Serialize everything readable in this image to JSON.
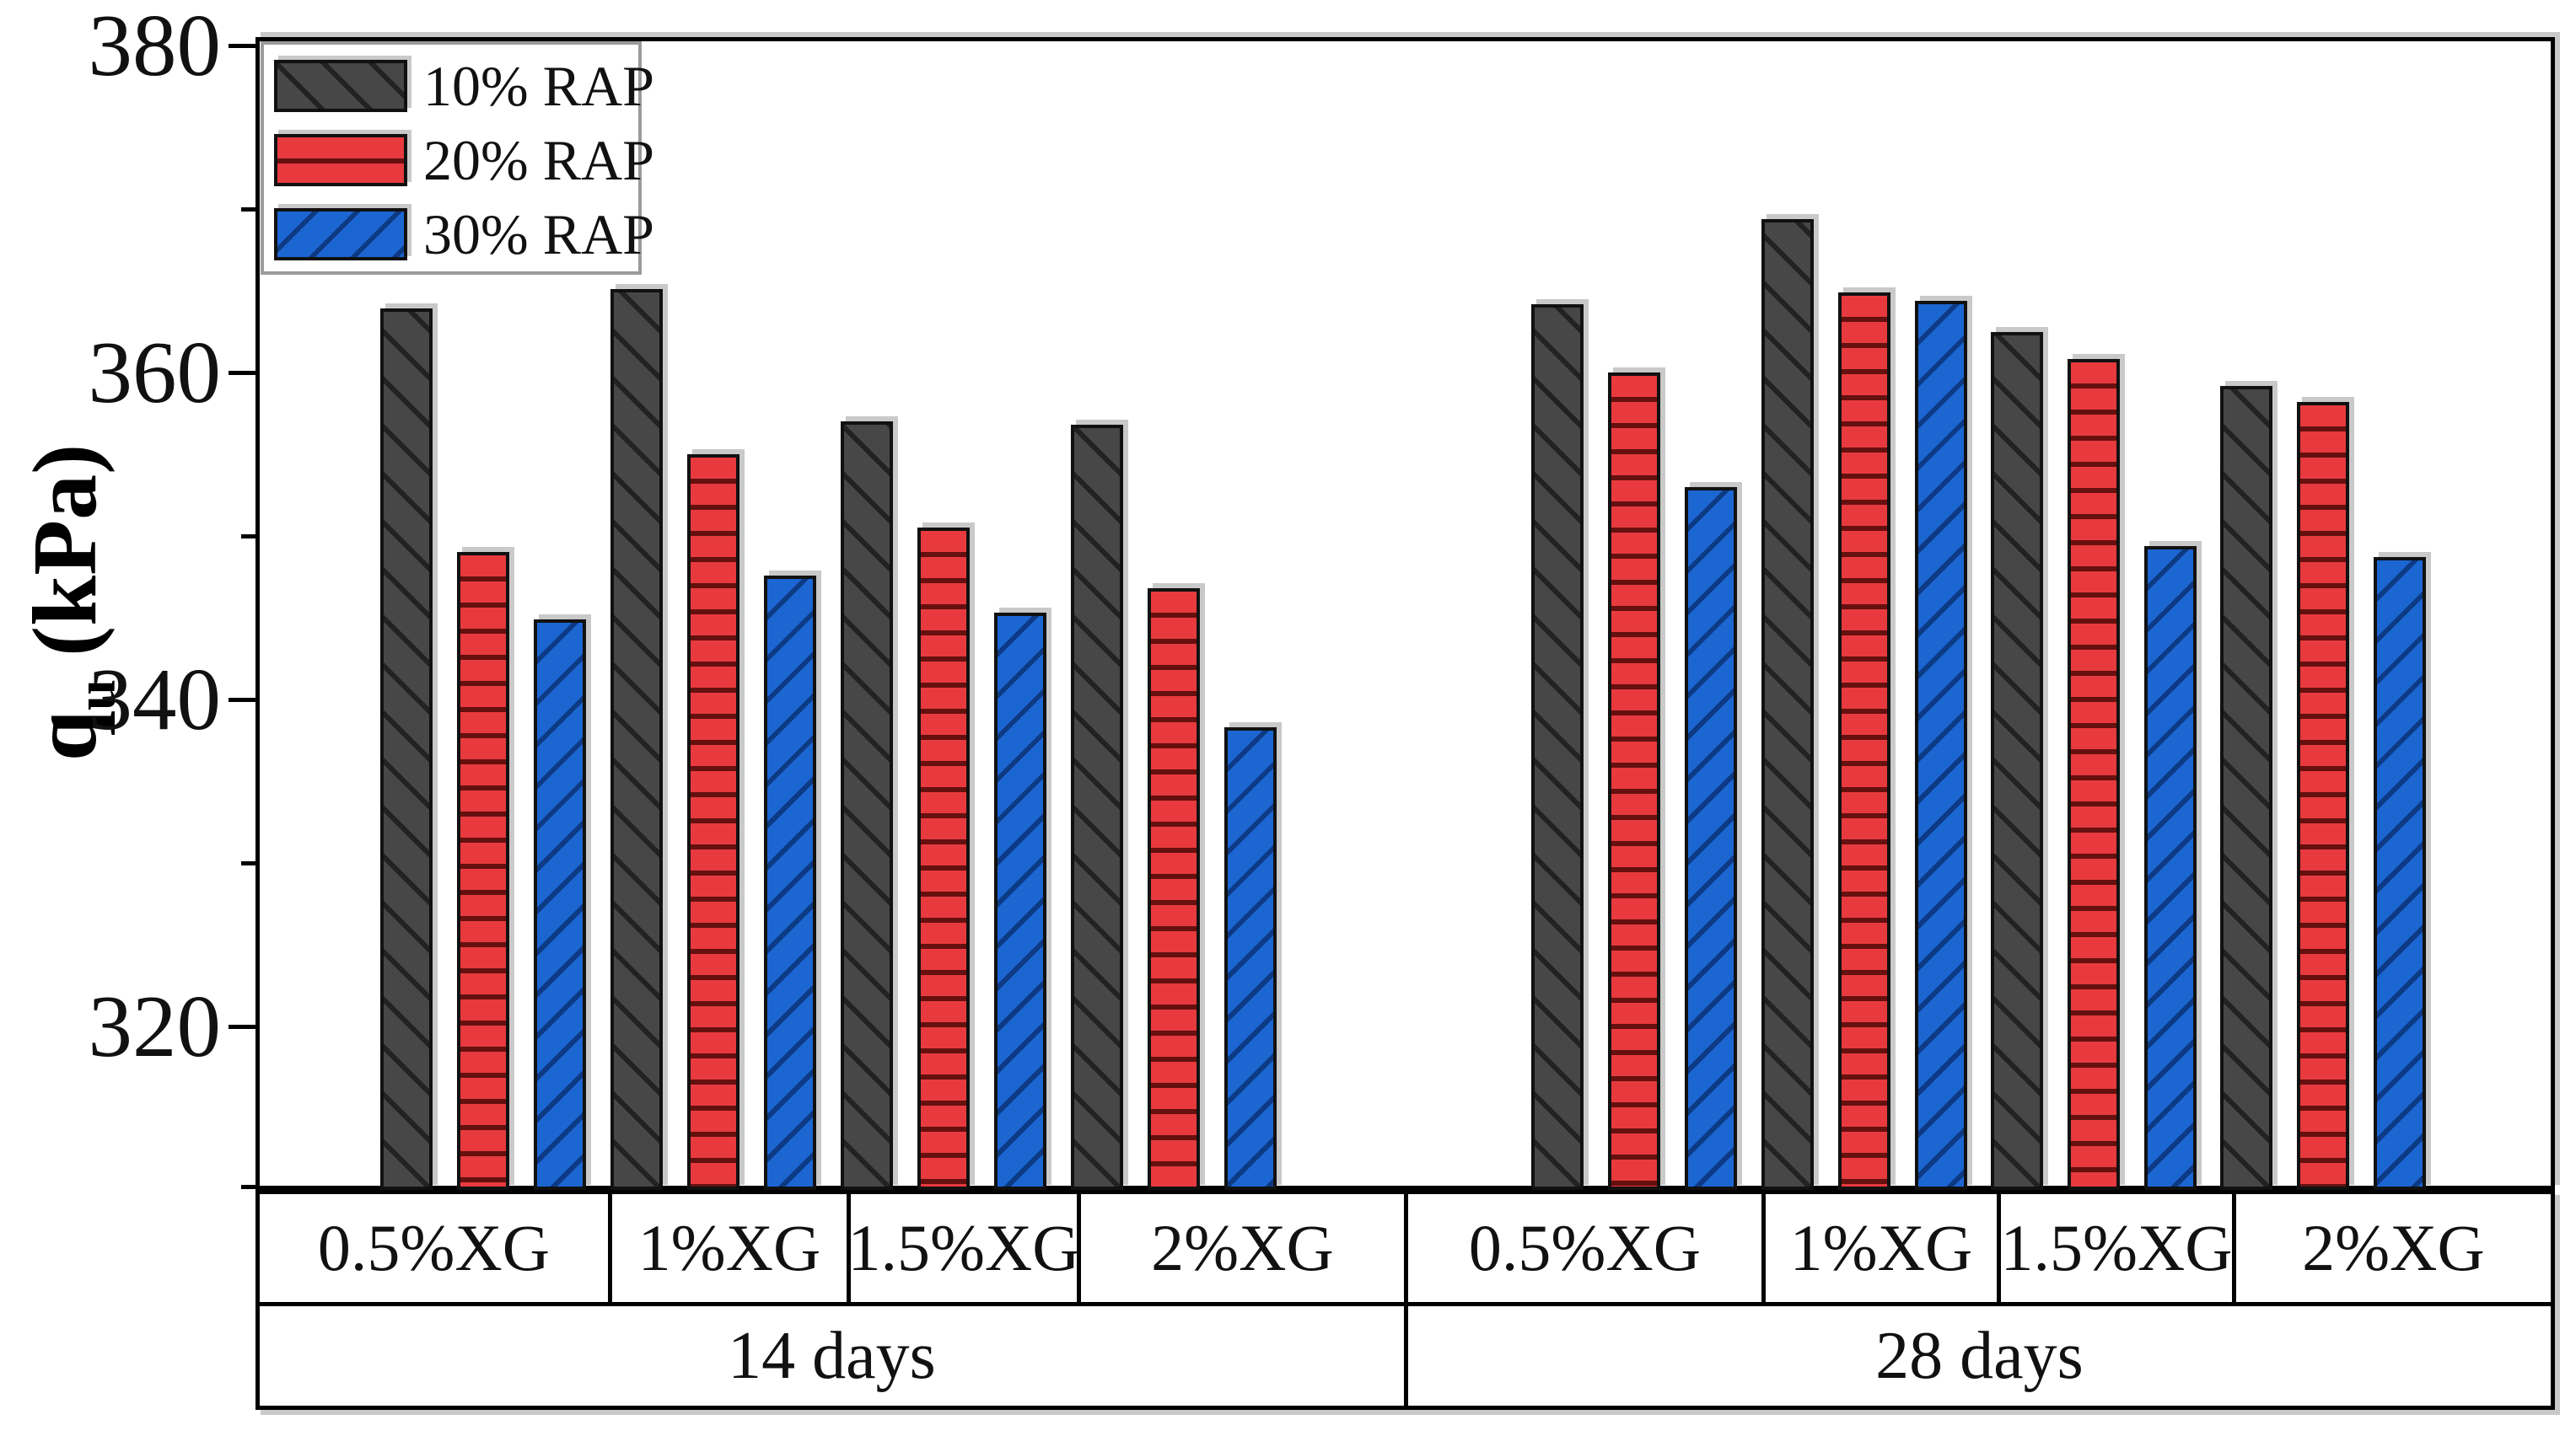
{
  "chart_data": {
    "type": "bar",
    "title": "",
    "ylabel": "q_u (kPa)",
    "ylabel_parts": {
      "main": "q",
      "sub": "u",
      "rest": " (kPa)"
    },
    "ylim": [
      310,
      380
    ],
    "y_major_ticks": [
      380,
      360,
      340,
      320
    ],
    "y_minor_ticks": [
      370,
      350,
      330,
      310
    ],
    "grid": false,
    "legend_position": "top-left",
    "categories": [
      "0.5%XG",
      "1%XG",
      "1.5%XG",
      "2%XG",
      "0.5%XG",
      "1%XG",
      "1.5%XG",
      "2%XG"
    ],
    "category_groups": [
      {
        "label": "14 days",
        "span": [
          0,
          3
        ]
      },
      {
        "label": "28 days",
        "span": [
          4,
          7
        ]
      }
    ],
    "series": [
      {
        "name": "10% RAP",
        "color": "#474747",
        "hatch": "\\",
        "hatch_line": "rgba(10,10,10,0.6)",
        "values": [
          363.9,
          365.1,
          357.0,
          356.8,
          364.2,
          369.4,
          362.5,
          359.2
        ]
      },
      {
        "name": "20% RAP",
        "color": "#e83a3e",
        "hatch": "-",
        "hatch_line": "rgba(70,5,5,0.8)",
        "values": [
          349.0,
          355.0,
          350.5,
          346.8,
          360.0,
          364.9,
          360.8,
          358.2
        ]
      },
      {
        "name": "30% RAP",
        "color": "#1c66d2",
        "hatch": "/",
        "hatch_line": "rgba(4,35,90,0.65)",
        "values": [
          344.9,
          347.6,
          345.3,
          338.3,
          353.0,
          364.4,
          349.4,
          348.7
        ]
      }
    ],
    "bar_outline": "#111111",
    "shadow_color": "#c9c9c9",
    "axis_color": "#000000",
    "legend_border_color": "#9b9b9b"
  }
}
